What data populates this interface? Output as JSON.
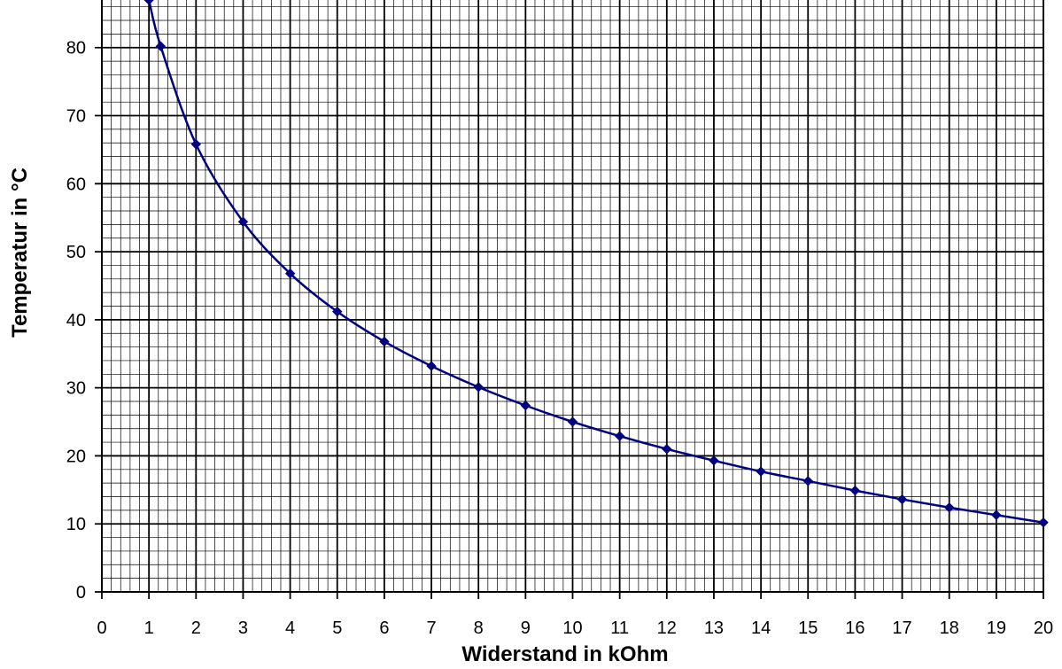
{
  "chart_data": {
    "type": "line",
    "title": "",
    "xlabel": "Widerstand in kOhm",
    "ylabel": "Temperatur in °C",
    "xlim": [
      0,
      20
    ],
    "ylim": [
      0,
      87
    ],
    "x_ticks": [
      0,
      1,
      2,
      3,
      4,
      5,
      6,
      7,
      8,
      9,
      10,
      11,
      12,
      13,
      14,
      15,
      16,
      17,
      18,
      19,
      20
    ],
    "y_ticks": [
      0,
      10,
      20,
      30,
      40,
      50,
      60,
      70,
      80
    ],
    "grid": true,
    "minor_grid_divisions": 5,
    "legend": "none",
    "series": [
      {
        "color": "#000080",
        "marker": "diamond",
        "points": [
          {
            "x": 1,
            "y": 87
          },
          {
            "x": 1.25,
            "y": 80.2
          },
          {
            "x": 2,
            "y": 65.8
          },
          {
            "x": 3,
            "y": 54.4
          },
          {
            "x": 4,
            "y": 46.8
          },
          {
            "x": 5,
            "y": 41.2
          },
          {
            "x": 6,
            "y": 36.8
          },
          {
            "x": 7,
            "y": 33.2
          },
          {
            "x": 8,
            "y": 30.1
          },
          {
            "x": 9,
            "y": 27.4
          },
          {
            "x": 10,
            "y": 25.0
          },
          {
            "x": 11,
            "y": 22.9
          },
          {
            "x": 12,
            "y": 21.0
          },
          {
            "x": 13,
            "y": 19.3
          },
          {
            "x": 14,
            "y": 17.7
          },
          {
            "x": 15,
            "y": 16.3
          },
          {
            "x": 16,
            "y": 14.9
          },
          {
            "x": 17,
            "y": 13.6
          },
          {
            "x": 18,
            "y": 12.4
          },
          {
            "x": 19,
            "y": 11.3
          },
          {
            "x": 20,
            "y": 10.2
          }
        ]
      }
    ]
  }
}
